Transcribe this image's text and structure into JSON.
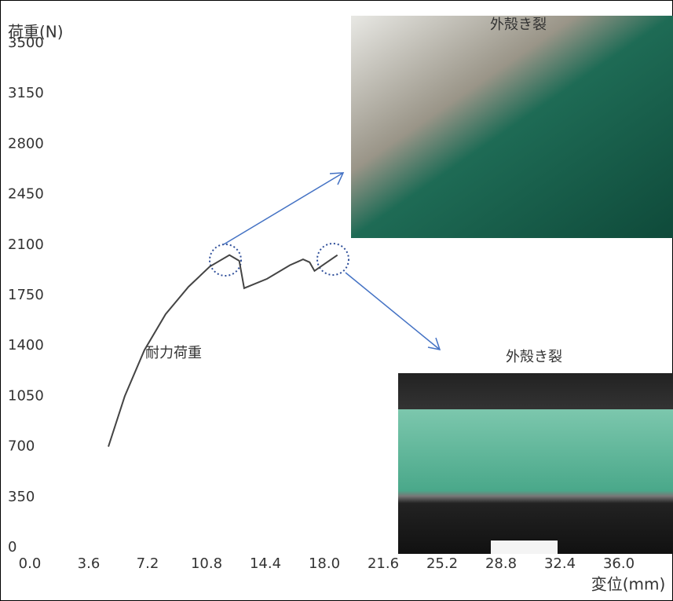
{
  "chart_data": {
    "type": "line",
    "y_label": "荷重(N)",
    "x_label": "変位(mm)",
    "annotations": [
      "耐力荷重",
      "外殻き裂",
      "外殻き裂"
    ],
    "x": [
      4.8,
      5.8,
      7.0,
      8.3,
      9.7,
      11.0,
      12.2,
      12.8,
      13.1,
      14.5,
      15.9,
      16.7,
      17.1,
      17.4,
      18.1,
      18.8
    ],
    "series": [
      {
        "color": "#444444",
        "values": [
          700,
          1050,
          1370,
          1620,
          1810,
          1950,
          2030,
          1990,
          1800,
          1865,
          1960,
          2000,
          1980,
          1920,
          1975,
          2030
        ]
      }
    ],
    "xlim": [
      0,
      36
    ],
    "ylim": [
      0,
      3500
    ],
    "xticks": [
      {
        "value": 0,
        "label": "0.0"
      },
      3.6,
      7.2,
      10.8,
      14.4,
      {
        "value": 18,
        "label": "18.0"
      },
      21.6,
      25.2,
      28.8,
      32.4,
      {
        "value": 36,
        "label": "36.0"
      }
    ],
    "yticks": [
      0,
      350,
      700,
      1050,
      1400,
      1750,
      2100,
      2450,
      2800,
      3150,
      3500
    ],
    "grid": false
  }
}
